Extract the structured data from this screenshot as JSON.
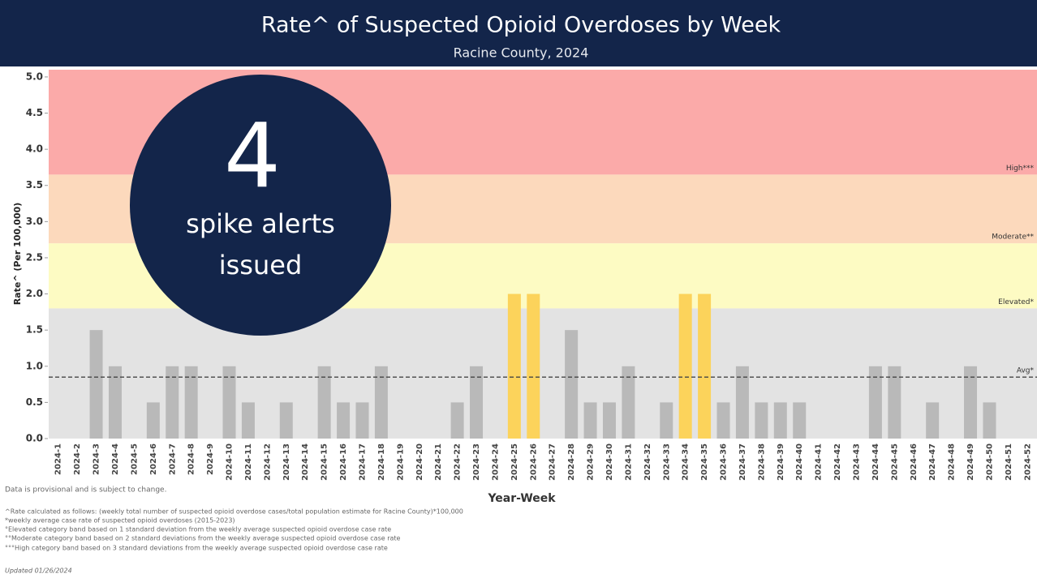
{
  "chart_data": {
    "type": "bar",
    "title": "Rate^ of Suspected Opioid Overdoses by Week",
    "subtitle": "Racine County, 2024",
    "y_label": "Rate^ (Per 100,000)",
    "x_label": "Year-Week",
    "categories": [
      "2024-1",
      "2024-2",
      "2024-3",
      "2024-4",
      "2024-5",
      "2024-6",
      "2024-7",
      "2024-8",
      "2024-9",
      "2024-10",
      "2024-11",
      "2024-12",
      "2024-13",
      "2024-14",
      "2024-15",
      "2024-16",
      "2024-17",
      "2024-18",
      "2024-19",
      "2024-20",
      "2024-21",
      "2024-22",
      "2024-23",
      "2024-24",
      "2024-25",
      "2024-26",
      "2024-27",
      "2024-28",
      "2024-29",
      "2024-30",
      "2024-31",
      "2024-32",
      "2024-33",
      "2024-34",
      "2024-35",
      "2024-36",
      "2024-37",
      "2024-38",
      "2024-39",
      "2024-40",
      "2024-41",
      "2024-42",
      "2024-43",
      "2024-44",
      "2024-45",
      "2024-46",
      "2024-47",
      "2024-48",
      "2024-49",
      "2024-50",
      "2024-51",
      "2024-52"
    ],
    "values": [
      0,
      0,
      1.5,
      1,
      0,
      0.5,
      1,
      1,
      0,
      1,
      0.5,
      0,
      0.5,
      0,
      1,
      0.5,
      0.5,
      1,
      0,
      0,
      0,
      0.5,
      1,
      0,
      2,
      2,
      0,
      1.5,
      0.5,
      0.5,
      1,
      0,
      0.5,
      2,
      2,
      0.5,
      1,
      0.5,
      0.5,
      0.5,
      0,
      0,
      0,
      1,
      1,
      0,
      0.5,
      0,
      1,
      0.5,
      0,
      0
    ],
    "color": "#b9b9b9",
    "spike_color": "#fcd35b",
    "spike_threshold": 1.8,
    "ylim": [
      0,
      5.1
    ],
    "yticks": [
      {
        "value": 0,
        "label": "0.0"
      },
      0.5,
      {
        "value": 1,
        "label": "1.0"
      },
      1.5,
      {
        "value": 2,
        "label": "2.0"
      },
      2.5,
      {
        "value": 3,
        "label": "3.0"
      },
      3.5,
      {
        "value": 4,
        "label": "4.0"
      },
      4.5,
      {
        "value": 5,
        "label": "5.0"
      }
    ],
    "bands": [
      {
        "from": 0,
        "to": 1.8,
        "color": "#e3e3e3"
      },
      {
        "from": 1.8,
        "to": 2.7,
        "color": "#fdfbc3",
        "label": "Elevated*"
      },
      {
        "from": 2.7,
        "to": 3.65,
        "color": "#fcd9bc",
        "label": "Moderate**"
      },
      {
        "from": 3.65,
        "to": 5.1,
        "color": "#fbaaa9",
        "label": "High***"
      }
    ],
    "average": {
      "value": 0.85,
      "label": "Avg*"
    },
    "callout": {
      "number": 4,
      "lines": [
        "spike alerts",
        "issued"
      ]
    },
    "footnotes": [
      "Data is provisional and is subject to change.",
      "^Rate calculated as follows: (weekly total number of suspected opioid overdose cases/total population estimate for Racine County)*100,000",
      "*weekly average case rate of suspected opioid overdoses (2015-2023)",
      "°Elevated category band based on 1 standard deviation from the weekly average suspected opioid overdose case rate",
      "°°Moderate category band based on 2 standard deviations from the weekly average suspected opioid overdose case rate",
      "°°°High category band based on 3 standard deviations from the weekly average suspected opioid overdose case rate",
      "Updated 01/26/2024"
    ]
  }
}
